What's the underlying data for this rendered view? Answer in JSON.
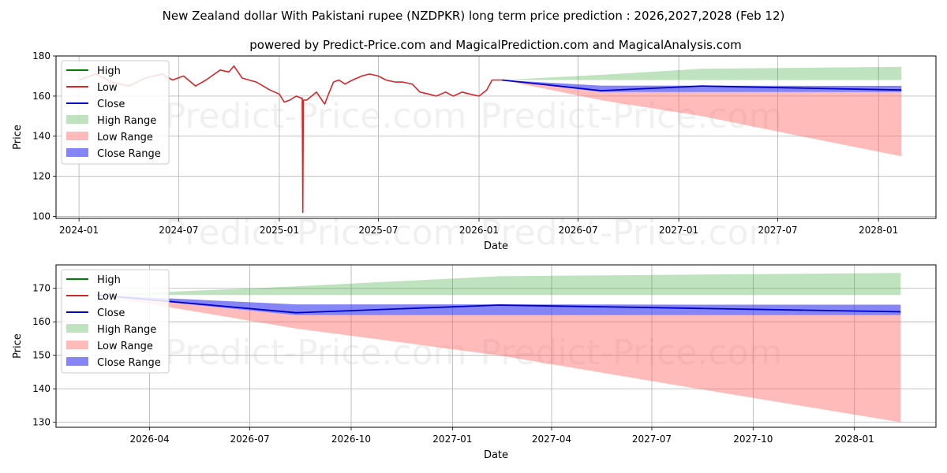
{
  "title": "New Zealand dollar With Pakistani rupee (NZDPKR) long term price prediction : 2026,2027,2028 (Feb 12)",
  "subtitle": "powered by Predict-Price.com and MagicalPrediction.com and MagicalAnalysis.com",
  "watermark": "Predict-Price.com",
  "colors": {
    "high": "#008000",
    "low": "#d62728",
    "close": "#0000cc",
    "high_range": "#2ca02c",
    "low_range": "#ff6666",
    "close_range": "#3333ee",
    "grid": "#b0b0b0"
  },
  "legend": [
    {
      "key": "high",
      "label": "High",
      "kind": "line"
    },
    {
      "key": "low",
      "label": "Low",
      "kind": "line"
    },
    {
      "key": "close",
      "label": "Close",
      "kind": "line"
    },
    {
      "key": "high_range",
      "label": "High Range",
      "kind": "patch"
    },
    {
      "key": "low_range",
      "label": "Low Range",
      "kind": "patch"
    },
    {
      "key": "close_range",
      "label": "Close Range",
      "kind": "patch"
    }
  ],
  "chart_data": [
    {
      "type": "line",
      "panel": "top",
      "xlabel": "Date",
      "ylabel": "Price",
      "xlim": [
        "2023-11-20",
        "2028-04-15"
      ],
      "ylim": [
        99,
        180
      ],
      "x_ticks": [
        "2024-01",
        "2024-07",
        "2025-01",
        "2025-07",
        "2026-01",
        "2026-07",
        "2027-01",
        "2027-07",
        "2028-01"
      ],
      "y_ticks": [
        100,
        120,
        140,
        160,
        180
      ],
      "grid": true,
      "legend_position": "top-left",
      "history": {
        "name": "Low",
        "points": [
          [
            "2024-01-01",
            168
          ],
          [
            "2024-02-01",
            171
          ],
          [
            "2024-03-01",
            167
          ],
          [
            "2024-04-01",
            165
          ],
          [
            "2024-05-01",
            169
          ],
          [
            "2024-06-01",
            171
          ],
          [
            "2024-06-20",
            168
          ],
          [
            "2024-07-10",
            170
          ],
          [
            "2024-08-01",
            165
          ],
          [
            "2024-08-20",
            168
          ],
          [
            "2024-09-15",
            173
          ],
          [
            "2024-10-01",
            172
          ],
          [
            "2024-10-10",
            175
          ],
          [
            "2024-10-25",
            169
          ],
          [
            "2024-11-20",
            167
          ],
          [
            "2024-12-15",
            163
          ],
          [
            "2025-01-01",
            161
          ],
          [
            "2025-01-10",
            157
          ],
          [
            "2025-01-20",
            158
          ],
          [
            "2025-02-01",
            160
          ],
          [
            "2025-02-10",
            159
          ],
          [
            "2025-02-12",
            159
          ],
          [
            "2025-02-13",
            102
          ],
          [
            "2025-02-14",
            158
          ],
          [
            "2025-02-20",
            158
          ],
          [
            "2025-03-01",
            160
          ],
          [
            "2025-03-10",
            162
          ],
          [
            "2025-03-20",
            158
          ],
          [
            "2025-03-25",
            156
          ],
          [
            "2025-04-01",
            161
          ],
          [
            "2025-04-10",
            167
          ],
          [
            "2025-04-20",
            168
          ],
          [
            "2025-05-01",
            166
          ],
          [
            "2025-05-15",
            168
          ],
          [
            "2025-06-01",
            170
          ],
          [
            "2025-06-15",
            171
          ],
          [
            "2025-07-01",
            170
          ],
          [
            "2025-07-15",
            168
          ],
          [
            "2025-08-01",
            167
          ],
          [
            "2025-08-15",
            167
          ],
          [
            "2025-09-01",
            166
          ],
          [
            "2025-09-15",
            162
          ],
          [
            "2025-10-01",
            161
          ],
          [
            "2025-10-15",
            160
          ],
          [
            "2025-11-01",
            162
          ],
          [
            "2025-11-15",
            160
          ],
          [
            "2025-12-01",
            162
          ],
          [
            "2025-12-15",
            161
          ],
          [
            "2026-01-01",
            160
          ],
          [
            "2026-01-15",
            163
          ],
          [
            "2026-01-25",
            168
          ],
          [
            "2026-02-12",
            168
          ]
        ]
      },
      "forecast": {
        "x": [
          "2026-02-12",
          "2026-08-12",
          "2027-02-12",
          "2027-08-12",
          "2028-02-12"
        ],
        "close": [
          168,
          162.7,
          165,
          164,
          163
        ],
        "high_range": {
          "lower": [
            168,
            168,
            168,
            168,
            168
          ],
          "upper": [
            168,
            170.6,
            173.6,
            174.1,
            174.6
          ]
        },
        "low_range": {
          "lower": [
            168,
            158,
            150,
            140,
            130
          ],
          "upper": [
            168,
            162,
            162,
            162,
            162
          ]
        },
        "close_range": {
          "lower": [
            168,
            162,
            162,
            162,
            162
          ],
          "upper": [
            168,
            165.2,
            165.2,
            165.1,
            165.1
          ]
        }
      }
    },
    {
      "type": "line",
      "panel": "bottom",
      "xlabel": "Date",
      "ylabel": "Price",
      "xlim": [
        "2026-01-06",
        "2028-03-15"
      ],
      "ylim": [
        128.5,
        177
      ],
      "x_ticks": [
        "2026-04",
        "2026-07",
        "2026-10",
        "2027-01",
        "2027-04",
        "2027-07",
        "2027-10",
        "2028-01"
      ],
      "y_ticks": [
        130,
        140,
        150,
        160,
        170
      ],
      "grid": true,
      "legend_position": "top-left",
      "forecast": {
        "x": [
          "2026-02-12",
          "2026-08-12",
          "2027-02-12",
          "2027-08-12",
          "2028-02-12"
        ],
        "close": [
          168,
          162.7,
          165,
          164,
          163
        ],
        "high_range": {
          "lower": [
            168,
            168,
            168,
            168,
            168
          ],
          "upper": [
            168,
            170.6,
            173.6,
            174.1,
            174.6
          ]
        },
        "low_range": {
          "lower": [
            168,
            158,
            150,
            140,
            130
          ],
          "upper": [
            168,
            162,
            162,
            162,
            162
          ]
        },
        "close_range": {
          "lower": [
            168,
            162,
            162,
            162,
            162
          ],
          "upper": [
            168,
            165.2,
            165.2,
            165.1,
            165.1
          ]
        }
      }
    }
  ]
}
